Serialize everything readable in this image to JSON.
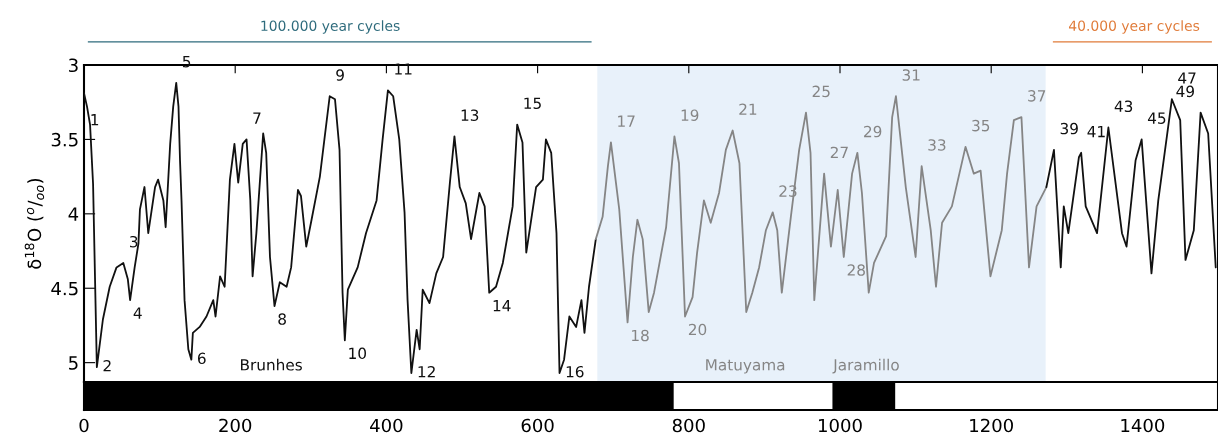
{
  "chart_data": [
    {
      "type": "line",
      "ylabel": "δ$^{18}$O ($^{o}$/$_{oo}$)",
      "xlim": [
        0,
        1500
      ],
      "xticks": [
        0,
        200,
        400,
        600,
        800,
        1000,
        1200,
        1400
      ],
      "ylim": [
        5.13,
        3
      ],
      "yticks": [
        3,
        3.5,
        4,
        4.5,
        5
      ],
      "tick_labels": "y",
      "grid": false,
      "legend": false,
      "bands": [
        {
          "axis": "x",
          "from": 679,
          "to": 1272,
          "color": "#e8f1fa"
        }
      ],
      "series": [
        {
          "color": "#111111",
          "x": [
            0,
            4,
            8,
            12,
            17,
            25,
            34,
            43,
            52,
            58,
            61,
            67,
            72,
            74,
            80,
            85,
            94,
            98,
            105,
            108,
            114,
            118,
            122,
            125,
            127,
            129,
            133,
            138,
            142,
            144,
            153,
            162,
            171,
            174,
            180,
            186,
            193,
            199,
            204,
            210,
            215,
            220,
            223,
            228,
            237,
            241,
            246,
            252,
            259,
            268,
            274,
            283,
            287,
            294,
            301,
            312,
            318,
            325,
            332,
            338,
            342,
            345,
            349,
            362,
            373,
            387,
            395,
            402,
            409,
            417,
            424,
            428,
            433,
            440,
            444,
            448,
            457,
            466,
            475,
            484,
            490,
            497,
            505,
            512,
            523,
            530,
            536,
            545,
            554,
            567,
            573,
            580,
            585,
            593,
            598,
            607,
            611,
            618,
            625,
            629,
            635,
            642,
            651,
            658,
            662,
            668,
            677
          ],
          "values": [
            3.19,
            3.28,
            3.4,
            3.8,
            5.03,
            4.71,
            4.49,
            4.36,
            4.33,
            4.44,
            4.58,
            4.36,
            4.2,
            3.97,
            3.82,
            4.13,
            3.82,
            3.77,
            3.91,
            4.09,
            3.53,
            3.28,
            3.12,
            3.28,
            3.64,
            3.91,
            4.58,
            4.91,
            4.98,
            4.8,
            4.76,
            4.69,
            4.58,
            4.69,
            4.42,
            4.49,
            3.77,
            3.53,
            3.79,
            3.53,
            3.5,
            3.91,
            4.42,
            4.13,
            3.46,
            3.59,
            4.29,
            4.62,
            4.46,
            4.49,
            4.36,
            3.84,
            3.88,
            4.22,
            4.04,
            3.75,
            3.5,
            3.21,
            3.23,
            3.57,
            4.53,
            4.85,
            4.51,
            4.36,
            4.13,
            3.91,
            3.5,
            3.17,
            3.21,
            3.5,
            3.99,
            4.58,
            5.07,
            4.78,
            4.91,
            4.51,
            4.6,
            4.4,
            4.29,
            3.79,
            3.48,
            3.82,
            3.93,
            4.17,
            3.86,
            3.95,
            4.53,
            4.49,
            4.33,
            3.95,
            3.4,
            3.52,
            4.26,
            3.99,
            3.82,
            3.77,
            3.5,
            3.59,
            4.13,
            5.07,
            4.98,
            4.69,
            4.76,
            4.58,
            4.8,
            4.49,
            4.17
          ]
        },
        {
          "color": "#858585",
          "x": [
            677,
            686,
            693,
            697,
            708,
            719,
            726,
            732,
            739,
            747,
            754,
            770,
            781,
            787,
            795,
            805,
            811,
            820,
            829,
            840,
            849,
            858,
            867,
            876,
            884,
            893,
            902,
            911,
            917,
            923,
            935,
            946,
            955,
            961,
            966,
            979,
            988,
            997,
            1005,
            1016,
            1023,
            1029,
            1038,
            1045,
            1061,
            1069,
            1074,
            1087,
            1100,
            1108,
            1120,
            1127,
            1135,
            1148,
            1166,
            1177,
            1186,
            1199,
            1214,
            1221,
            1230,
            1240,
            1250,
            1260,
            1273
          ],
          "values": [
            4.17,
            4.02,
            3.68,
            3.52,
            3.97,
            4.73,
            4.29,
            4.04,
            4.17,
            4.66,
            4.53,
            4.09,
            3.48,
            3.66,
            4.69,
            4.56,
            4.26,
            3.91,
            4.06,
            3.86,
            3.57,
            3.44,
            3.66,
            4.66,
            4.53,
            4.36,
            4.11,
            3.99,
            4.11,
            4.53,
            4.02,
            3.57,
            3.32,
            3.59,
            4.58,
            3.73,
            4.22,
            3.84,
            4.29,
            3.73,
            3.59,
            3.86,
            4.53,
            4.33,
            4.15,
            3.35,
            3.21,
            3.82,
            4.29,
            3.68,
            4.11,
            4.49,
            4.06,
            3.95,
            3.55,
            3.73,
            3.71,
            4.42,
            4.11,
            3.73,
            3.37,
            3.35,
            4.36,
            3.95,
            3.82
          ]
        },
        {
          "color": "#111111",
          "x": [
            1273,
            1283,
            1292,
            1296,
            1302,
            1316,
            1319,
            1325,
            1340,
            1355,
            1373,
            1379,
            1391,
            1399,
            1412,
            1421,
            1439,
            1450,
            1457,
            1468,
            1477,
            1487,
            1497
          ],
          "values": [
            3.82,
            3.57,
            4.36,
            3.95,
            4.13,
            3.62,
            3.59,
            3.95,
            4.13,
            3.42,
            4.13,
            4.22,
            3.64,
            3.5,
            4.4,
            3.91,
            3.23,
            3.37,
            4.31,
            4.11,
            3.32,
            3.46,
            4.36
          ]
        }
      ],
      "annotations": [
        "100.000 year cycles",
        "40.000 year cycles",
        "Brunhes",
        "Matuyama",
        "Jaramillo",
        {
          "text": "1",
          "x": 4,
          "y": 3.28
        },
        {
          "text": "2",
          "x": 17,
          "y": 5.03
        },
        {
          "text": "3",
          "x": 52,
          "y": 4.33
        },
        {
          "text": "4",
          "x": 61,
          "y": 4.58
        },
        {
          "text": "5",
          "x": 122,
          "y": 3.12
        },
        {
          "text": "6",
          "x": 142,
          "y": 4.98
        },
        {
          "text": "7",
          "x": 215,
          "y": 3.5
        },
        {
          "text": "8",
          "x": 252,
          "y": 4.62
        },
        {
          "text": "9",
          "x": 325,
          "y": 3.21
        },
        {
          "text": "10",
          "x": 345,
          "y": 4.85
        },
        {
          "text": "11",
          "x": 402,
          "y": 3.17
        },
        {
          "text": "12",
          "x": 433,
          "y": 5.07
        },
        {
          "text": "13",
          "x": 490,
          "y": 3.48
        },
        {
          "text": "14",
          "x": 536,
          "y": 4.53
        },
        {
          "text": "15",
          "x": 573,
          "y": 3.4
        },
        {
          "text": "16",
          "x": 629,
          "y": 5.07
        },
        {
          "text": "17",
          "x": 697,
          "y": 3.52
        },
        {
          "text": "18",
          "x": 719,
          "y": 4.73
        },
        {
          "text": "19",
          "x": 781,
          "y": 3.48
        },
        {
          "text": "20",
          "x": 795,
          "y": 4.69
        },
        {
          "text": "21",
          "x": 858,
          "y": 3.44
        },
        {
          "text": "23",
          "x": 911,
          "y": 3.99
        },
        {
          "text": "25",
          "x": 955,
          "y": 3.32
        },
        {
          "text": "27",
          "x": 979,
          "y": 3.73
        },
        {
          "text": "28",
          "x": 1005,
          "y": 4.29
        },
        {
          "text": "29",
          "x": 1023,
          "y": 3.59
        },
        {
          "text": "31",
          "x": 1074,
          "y": 3.21
        },
        {
          "text": "33",
          "x": 1108,
          "y": 3.68
        },
        {
          "text": "35",
          "x": 1166,
          "y": 3.55
        },
        {
          "text": "37",
          "x": 1240,
          "y": 3.35
        },
        {
          "text": "39",
          "x": 1283,
          "y": 3.57
        },
        {
          "text": "41",
          "x": 1319,
          "y": 3.59
        },
        {
          "text": "43",
          "x": 1355,
          "y": 3.42
        },
        {
          "text": "45",
          "x": 1399,
          "y": 3.5
        },
        {
          "text": "47",
          "x": 1439,
          "y": 3.23
        },
        {
          "text": "49",
          "x": 1477,
          "y": 3.32
        }
      ]
    },
    {
      "type": "bar",
      "orientation": "horizontal",
      "categories": [
        null
      ],
      "xlim": [
        0,
        1500
      ],
      "xticks": [
        0,
        200,
        400,
        600,
        800,
        1000,
        1200,
        1400
      ],
      "tick_labels": "x",
      "series": [
        {
          "color": "#000000",
          "base": [
            0
          ],
          "values": [
            780
          ]
        },
        {
          "color": "#000000",
          "base": [
            990
          ],
          "values": [
            83
          ]
        }
      ]
    }
  ]
}
